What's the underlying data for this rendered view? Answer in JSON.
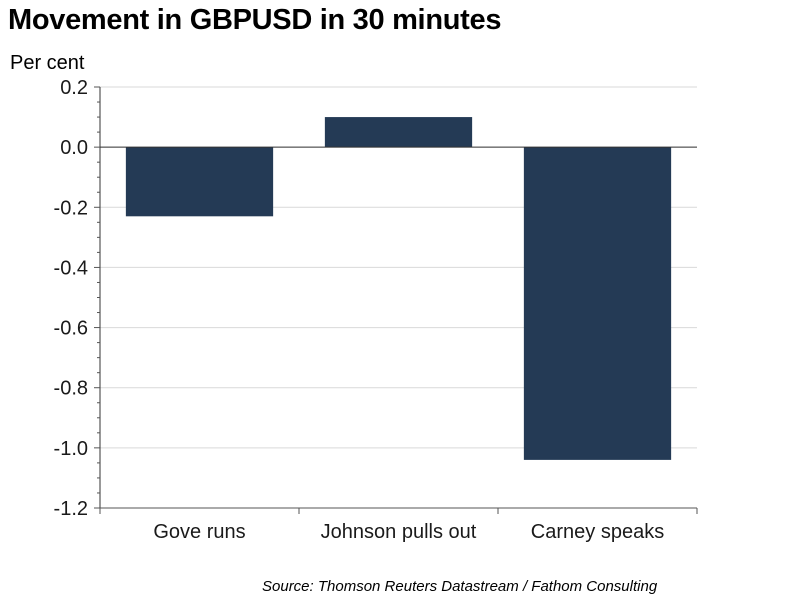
{
  "chart_data": {
    "type": "bar",
    "title": "Movement in GBPUSD in 30 minutes",
    "ylabel": "Per cent",
    "xlabel": "",
    "categories": [
      "Gove runs",
      "Johnson pulls out",
      "Carney speaks"
    ],
    "values": [
      -0.23,
      0.1,
      -1.04
    ],
    "ylim": [
      -1.2,
      0.2
    ],
    "yticks": [
      0.2,
      0.0,
      -0.2,
      -0.4,
      -0.6,
      -0.8,
      -1.0,
      -1.2
    ],
    "ytick_labels": [
      "0.2",
      "0.0",
      "-0.2",
      "-0.4",
      "-0.6",
      "-0.8",
      "-1.0",
      "-1.2"
    ],
    "grid": true,
    "bar_color": "#243a55",
    "source": "Source: Thomson Reuters Datastream / Fathom Consulting"
  }
}
